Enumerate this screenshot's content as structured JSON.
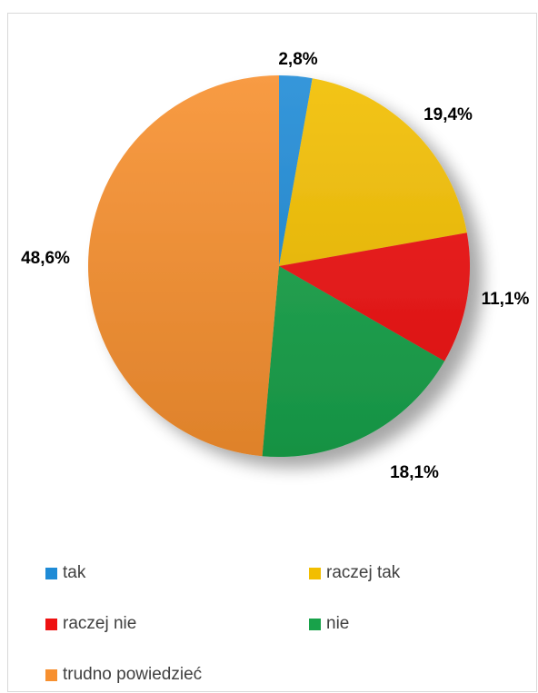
{
  "chart_data": {
    "type": "pie",
    "title": "",
    "categories": [
      "tak",
      "raczej tak",
      "raczej nie",
      "nie",
      "trudno powiedzieć"
    ],
    "values": [
      2.8,
      19.4,
      11.1,
      18.1,
      48.6
    ],
    "labels": [
      "2,8%",
      "19,4%",
      "11,1%",
      "18,1%",
      "48,6%"
    ],
    "colors": [
      "#1f8bd6",
      "#f2be00",
      "#ee1111",
      "#18a24a",
      "#f7902f"
    ],
    "legend_position": "bottom"
  },
  "legend": {
    "items": [
      {
        "label": "tak",
        "color": "#1f8bd6"
      },
      {
        "label": "raczej tak",
        "color": "#f2be00"
      },
      {
        "label": "raczej nie",
        "color": "#ee1111"
      },
      {
        "label": "nie",
        "color": "#18a24a"
      },
      {
        "label": "trudno powiedzieć",
        "color": "#f7902f"
      }
    ]
  }
}
